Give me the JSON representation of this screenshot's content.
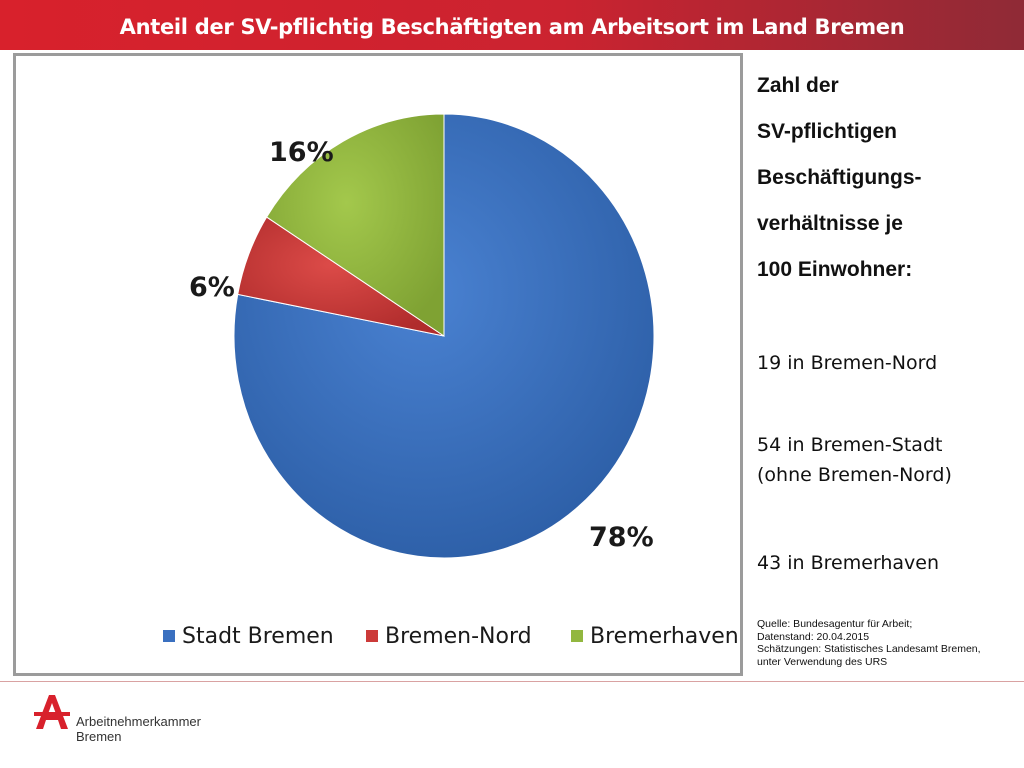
{
  "header": {
    "title": "Anteil der SV-pflichtig Beschäftigten am Arbeitsort im Land Bremen"
  },
  "chart_data": {
    "type": "pie",
    "categories": [
      "Stadt Bremen",
      "Bremen-Nord",
      "Bremerhaven"
    ],
    "values": [
      78,
      6,
      16
    ],
    "labels": [
      "78%",
      "6%",
      "16%"
    ],
    "colors": [
      "#3a70c0",
      "#cc3a39",
      "#92b73f"
    ],
    "legend_position": "bottom"
  },
  "sidebar": {
    "heading_lines": [
      "Zahl der",
      "SV-pflichtigen",
      "Beschäftigungs-",
      "verhältnisse je",
      "100 Einwohner:"
    ],
    "stats": [
      {
        "line1": "19 in Bremen-Nord",
        "line2": ""
      },
      {
        "line1": "54 in Bremen-Stadt",
        "line2": "(ohne Bremen-Nord)"
      },
      {
        "line1": "43 in Bremerhaven",
        "line2": ""
      }
    ],
    "source_lines": [
      "Quelle: Bundesagentur für Arbeit;",
      "Datenstand: 20.04.2015",
      "Schätzungen: Statistisches Landesamt Bremen,",
      "unter Verwendung des URS"
    ]
  },
  "footer": {
    "logo_line1": "Arbeitnehmerkammer",
    "logo_line2": "Bremen",
    "logo_icon": "arbeitnehmerkammer-a-logo",
    "accent_color": "#d8212c"
  }
}
